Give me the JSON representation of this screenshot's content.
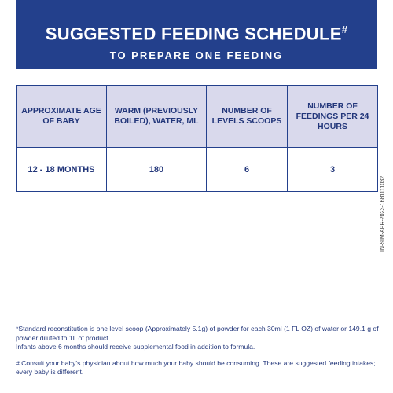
{
  "header": {
    "title": "SUGGESTED FEEDING SCHEDULE",
    "title_mark": "#",
    "subtitle": "TO PREPARE ONE FEEDING"
  },
  "table": {
    "columns": [
      "APPROXIMATE AGE OF BABY",
      "WARM (PREVIOUSLY BOILED), WATER, ML",
      "NUMBER OF LEVELS SCOOPS",
      "NUMBER OF FEEDINGS PER 24 HOURS"
    ],
    "rows": [
      [
        "12 - 18 MONTHS",
        "180",
        "6",
        "3"
      ]
    ]
  },
  "side_code": "IN-SIM-APR-2023-1681111032",
  "notes": [
    "*Standard reconstitution is one level scoop (Approximately 5.1g) of powder for each 30ml (1 FL OZ) of water or 149.1 g of powder diluted to 1L of product.",
    "Infants above 6 months should receive supplemental food in addition to formula.",
    "# Consult your baby's physician about how much your baby should be consuming. These are suggested feeding intakes; every baby is different."
  ]
}
